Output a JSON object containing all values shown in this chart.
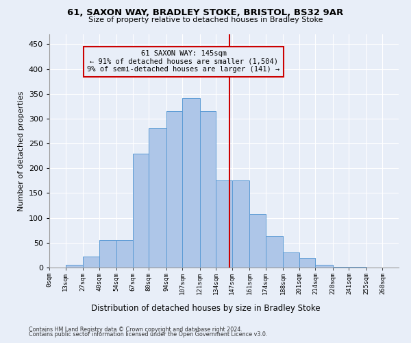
{
  "title1": "61, SAXON WAY, BRADLEY STOKE, BRISTOL, BS32 9AR",
  "title2": "Size of property relative to detached houses in Bradley Stoke",
  "xlabel": "Distribution of detached houses by size in Bradley Stoke",
  "ylabel": "Number of detached properties",
  "footer1": "Contains HM Land Registry data © Crown copyright and database right 2024.",
  "footer2": "Contains public sector information licensed under the Open Government Licence v3.0.",
  "annotation_title": "61 SAXON WAY: 145sqm",
  "annotation_line1": "← 91% of detached houses are smaller (1,504)",
  "annotation_line2": "9% of semi-detached houses are larger (141) →",
  "bar_labels": [
    "0sqm",
    "13sqm",
    "27sqm",
    "40sqm",
    "54sqm",
    "67sqm",
    "80sqm",
    "94sqm",
    "107sqm",
    "121sqm",
    "134sqm",
    "147sqm",
    "161sqm",
    "174sqm",
    "188sqm",
    "201sqm",
    "214sqm",
    "228sqm",
    "241sqm",
    "255sqm",
    "268sqm"
  ],
  "bar_values": [
    0,
    5,
    22,
    55,
    55,
    230,
    280,
    315,
    342,
    315,
    175,
    175,
    108,
    63,
    30,
    19,
    6,
    2,
    1,
    0,
    0
  ],
  "bin_edges": [
    0,
    13,
    27,
    40,
    54,
    67,
    80,
    94,
    107,
    121,
    134,
    147,
    161,
    174,
    188,
    201,
    214,
    228,
    241,
    255,
    268,
    281
  ],
  "bar_color": "#aec6e8",
  "bar_edge_color": "#5b9bd5",
  "bg_color": "#e8eef8",
  "grid_color": "#ffffff",
  "vline_x": 145,
  "vline_color": "#cc0000",
  "annotation_box_color": "#cc0000",
  "ylim": [
    0,
    470
  ],
  "yticks": [
    0,
    50,
    100,
    150,
    200,
    250,
    300,
    350,
    400,
    450
  ]
}
